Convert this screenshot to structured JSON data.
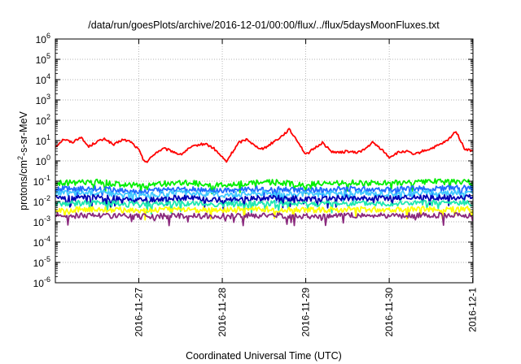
{
  "chart_data": {
    "type": "line",
    "title": "/data/run/goesPlots/archive/2016-12-01/00:00/flux/../flux/5daysMoonFluxes.txt",
    "xlabel": "Coordinated Universal Time (UTC)",
    "ylabel": "protons/cm2-s-sr-MeV",
    "ylabel_parts": {
      "before": "protons/cm",
      "sup": "2",
      "after": "-s-sr-MeV"
    },
    "yscale": "log",
    "ylim": [
      1e-06,
      1000000.0
    ],
    "y_ticks": [
      {
        "value": 1e-06,
        "base": "10",
        "exp": "-6"
      },
      {
        "value": 1e-05,
        "base": "10",
        "exp": "-5"
      },
      {
        "value": 0.0001,
        "base": "10",
        "exp": "-4"
      },
      {
        "value": 0.001,
        "base": "10",
        "exp": "-3"
      },
      {
        "value": 0.01,
        "base": "10",
        "exp": "-2"
      },
      {
        "value": 0.1,
        "base": "10",
        "exp": "-1"
      },
      {
        "value": 1.0,
        "base": "10",
        "exp": "0"
      },
      {
        "value": 10.0,
        "base": "10",
        "exp": "1"
      },
      {
        "value": 100.0,
        "base": "10",
        "exp": "2"
      },
      {
        "value": 1000.0,
        "base": "10",
        "exp": "3"
      },
      {
        "value": 10000.0,
        "base": "10",
        "exp": "4"
      },
      {
        "value": 100000.0,
        "base": "10",
        "exp": "5"
      },
      {
        "value": 1000000.0,
        "base": "10",
        "exp": "6"
      }
    ],
    "xlim": [
      "2016-11-26 00:00",
      "2016-12-01 00:05"
    ],
    "x_ticks": [
      {
        "value": "2016-11-27",
        "label": "2016-11-27"
      },
      {
        "value": "2016-11-28",
        "label": "2016-11-28"
      },
      {
        "value": "2016-11-29",
        "label": "2016-11-29"
      },
      {
        "value": "2016-11-30",
        "label": "2016-11-30"
      },
      {
        "value": "2016-12-01",
        "label": "2016-12-1"
      }
    ],
    "grid": true,
    "series": [
      {
        "color": "#ff0000",
        "points": [
          [
            "2016-11-26 00:00",
            5.0
          ],
          [
            "2016-11-26 02:24",
            12.0
          ],
          [
            "2016-11-26 04:48",
            8.0
          ],
          [
            "2016-11-26 07:12",
            15.0
          ],
          [
            "2016-11-26 09:36",
            5.0
          ],
          [
            "2016-11-26 12:00",
            9.0
          ],
          [
            "2016-11-26 14:24",
            12.0
          ],
          [
            "2016-11-26 16:48",
            6.0
          ],
          [
            "2016-11-26 19:12",
            11.0
          ],
          [
            "2016-11-26 21:36",
            9.0
          ],
          [
            "2016-11-27 00:00",
            3.5
          ],
          [
            "2016-11-27 01:12",
            1.2
          ],
          [
            "2016-11-27 02:24",
            0.9
          ],
          [
            "2016-11-27 04:48",
            2.5
          ],
          [
            "2016-11-27 07:12",
            4.0
          ],
          [
            "2016-11-27 09:36",
            3.0
          ],
          [
            "2016-11-27 12:00",
            2.0
          ],
          [
            "2016-11-27 14:24",
            4.0
          ],
          [
            "2016-11-27 16:48",
            6.0
          ],
          [
            "2016-11-27 19:12",
            7.0
          ],
          [
            "2016-11-27 21:36",
            4.0
          ],
          [
            "2016-11-28 00:00",
            1.5
          ],
          [
            "2016-11-28 01:12",
            0.9
          ],
          [
            "2016-11-28 02:24",
            2.0
          ],
          [
            "2016-11-28 04:48",
            8.0
          ],
          [
            "2016-11-28 07:12",
            12.0
          ],
          [
            "2016-11-28 09:36",
            5.0
          ],
          [
            "2016-11-28 12:00",
            4.0
          ],
          [
            "2016-11-28 14:24",
            8.0
          ],
          [
            "2016-11-28 16:48",
            15.0
          ],
          [
            "2016-11-28 19:12",
            35.0
          ],
          [
            "2016-11-28 21:36",
            10.0
          ],
          [
            "2016-11-29 00:00",
            2.0
          ],
          [
            "2016-11-29 02:24",
            4.0
          ],
          [
            "2016-11-29 04:48",
            8.0
          ],
          [
            "2016-11-29 07:12",
            3.0
          ],
          [
            "2016-11-29 09:36",
            2.5
          ],
          [
            "2016-11-29 12:00",
            3.0
          ],
          [
            "2016-11-29 14:24",
            2.5
          ],
          [
            "2016-11-29 16:48",
            3.5
          ],
          [
            "2016-11-29 19:12",
            8.0
          ],
          [
            "2016-11-29 21:36",
            4.0
          ],
          [
            "2016-11-30 00:00",
            1.5
          ],
          [
            "2016-11-30 02:24",
            2.5
          ],
          [
            "2016-11-30 04:48",
            3.0
          ],
          [
            "2016-11-30 07:12",
            2.0
          ],
          [
            "2016-11-30 09:36",
            3.0
          ],
          [
            "2016-11-30 12:00",
            4.0
          ],
          [
            "2016-11-30 14:24",
            6.0
          ],
          [
            "2016-11-30 16:48",
            10.0
          ],
          [
            "2016-11-30 19:12",
            30.0
          ],
          [
            "2016-11-30 21:36",
            4.0
          ],
          [
            "2016-12-01 00:00",
            3.0
          ]
        ]
      },
      {
        "color": "#00ee00",
        "points": [
          [
            "2016-11-26 00:00",
            0.08
          ],
          [
            "2016-11-26 12:00",
            0.09
          ],
          [
            "2016-11-27 00:00",
            0.06
          ],
          [
            "2016-11-27 12:00",
            0.085
          ],
          [
            "2016-11-28 00:00",
            0.065
          ],
          [
            "2016-11-28 12:00",
            0.095
          ],
          [
            "2016-11-29 00:00",
            0.07
          ],
          [
            "2016-11-29 12:00",
            0.085
          ],
          [
            "2016-11-30 00:00",
            0.08
          ],
          [
            "2016-11-30 12:00",
            0.095
          ],
          [
            "2016-12-01 00:00",
            0.09
          ]
        ]
      },
      {
        "color": "#1e6bff",
        "points": [
          [
            "2016-11-26 00:00",
            0.04
          ],
          [
            "2016-11-26 12:00",
            0.045
          ],
          [
            "2016-11-27 00:00",
            0.03
          ],
          [
            "2016-11-27 12:00",
            0.042
          ],
          [
            "2016-11-28 00:00",
            0.032
          ],
          [
            "2016-11-28 12:00",
            0.045
          ],
          [
            "2016-11-29 00:00",
            0.035
          ],
          [
            "2016-11-29 12:00",
            0.042
          ],
          [
            "2016-11-30 00:00",
            0.04
          ],
          [
            "2016-11-30 12:00",
            0.046
          ],
          [
            "2016-12-01 00:00",
            0.045
          ]
        ]
      },
      {
        "color": "#40c8ff",
        "points": [
          [
            "2016-11-26 00:00",
            0.025
          ],
          [
            "2016-11-26 12:00",
            0.028
          ],
          [
            "2016-11-27 00:00",
            0.02
          ],
          [
            "2016-11-27 12:00",
            0.026
          ],
          [
            "2016-11-28 00:00",
            0.021
          ],
          [
            "2016-11-28 12:00",
            0.027
          ],
          [
            "2016-11-29 00:00",
            0.022
          ],
          [
            "2016-11-29 12:00",
            0.026
          ],
          [
            "2016-11-30 00:00",
            0.024
          ],
          [
            "2016-11-30 12:00",
            0.028
          ],
          [
            "2016-12-01 00:00",
            0.027
          ]
        ]
      },
      {
        "color": "#0000b4",
        "points": [
          [
            "2016-11-26 00:00",
            0.014
          ],
          [
            "2016-11-26 12:00",
            0.016
          ],
          [
            "2016-11-27 00:00",
            0.011
          ],
          [
            "2016-11-27 12:00",
            0.015
          ],
          [
            "2016-11-28 00:00",
            0.012
          ],
          [
            "2016-11-28 12:00",
            0.016
          ],
          [
            "2016-11-29 00:00",
            0.013
          ],
          [
            "2016-11-29 12:00",
            0.015
          ],
          [
            "2016-11-30 00:00",
            0.014
          ],
          [
            "2016-11-30 12:00",
            0.016
          ],
          [
            "2016-12-01 00:00",
            0.016
          ]
        ]
      },
      {
        "color": "#1ee8b0",
        "points": [
          [
            "2016-11-26 00:00",
            0.008
          ],
          [
            "2016-11-26 12:00",
            0.0085
          ],
          [
            "2016-11-27 00:00",
            0.007
          ],
          [
            "2016-11-27 12:00",
            0.0082
          ],
          [
            "2016-11-28 00:00",
            0.0072
          ],
          [
            "2016-11-28 12:00",
            0.0085
          ],
          [
            "2016-11-29 00:00",
            0.0075
          ],
          [
            "2016-11-29 12:00",
            0.0082
          ],
          [
            "2016-11-30 00:00",
            0.0078
          ],
          [
            "2016-11-30 12:00",
            0.0086
          ],
          [
            "2016-12-01 00:00",
            0.0084
          ]
        ]
      },
      {
        "color": "#ffff00",
        "points": [
          [
            "2016-11-26 00:00",
            0.004
          ],
          [
            "2016-11-26 12:00",
            0.0042
          ],
          [
            "2016-11-27 00:00",
            0.0036
          ],
          [
            "2016-11-27 12:00",
            0.0041
          ],
          [
            "2016-11-28 00:00",
            0.0037
          ],
          [
            "2016-11-28 12:00",
            0.0042
          ],
          [
            "2016-11-29 00:00",
            0.0038
          ],
          [
            "2016-11-29 12:00",
            0.0041
          ],
          [
            "2016-11-30 00:00",
            0.004
          ],
          [
            "2016-11-30 12:00",
            0.0042
          ],
          [
            "2016-12-01 00:00",
            0.0042
          ]
        ]
      },
      {
        "color": "#8b2a7e",
        "points": [
          [
            "2016-11-26 00:00",
            0.002
          ],
          [
            "2016-11-26 12:00",
            0.0021
          ],
          [
            "2016-11-27 00:00",
            0.0018
          ],
          [
            "2016-11-27 12:00",
            0.002
          ],
          [
            "2016-11-28 00:00",
            0.0019
          ],
          [
            "2016-11-28 12:00",
            0.0021
          ],
          [
            "2016-11-29 00:00",
            0.0019
          ],
          [
            "2016-11-29 12:00",
            0.002
          ],
          [
            "2016-11-30 00:00",
            0.002
          ],
          [
            "2016-11-30 12:00",
            0.0021
          ],
          [
            "2016-12-01 00:00",
            0.002
          ]
        ]
      }
    ]
  }
}
